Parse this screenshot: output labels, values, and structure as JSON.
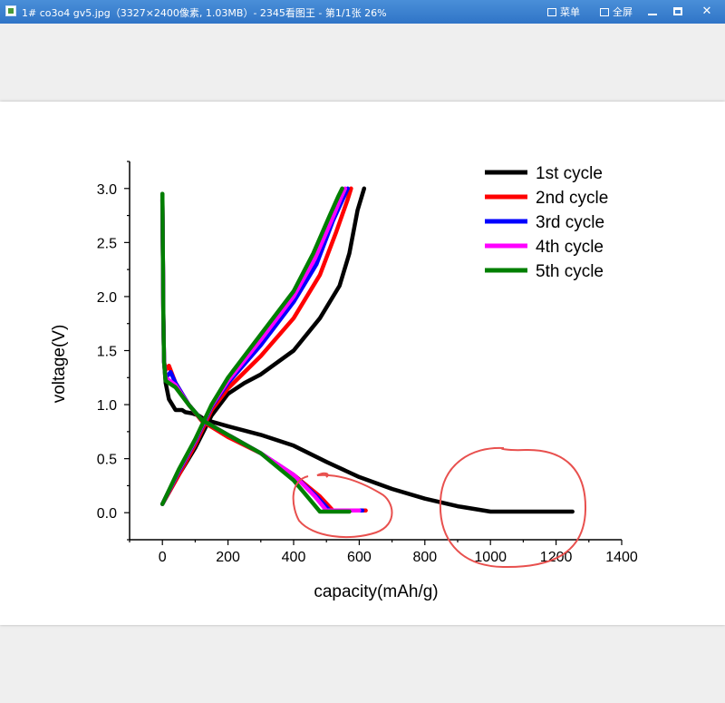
{
  "window": {
    "title": "1# co3o4 gv5.jpg（3327×2400像素, 1.03MB）- 2345看图王 - 第1/1张 26%",
    "menu_label": "菜单",
    "fullscreen_label": "全屏",
    "minimize_symbol": "—",
    "maximize_symbol": "□",
    "close_symbol": "✕"
  },
  "chart_data": {
    "type": "line",
    "xlabel": "capacity(mAh/g)",
    "ylabel": "voltage(V)",
    "xlim": [
      -100,
      1400
    ],
    "ylim": [
      -0.25,
      3.25
    ],
    "xticks": [
      "0",
      "200",
      "400",
      "600",
      "800",
      "1000",
      "1200",
      "1400"
    ],
    "yticks": [
      "0.0",
      "0.5",
      "1.0",
      "1.5",
      "2.0",
      "2.5",
      "3.0"
    ],
    "legend_position": "top-right",
    "series": [
      {
        "name": "1st cycle",
        "color": "#000000",
        "discharge": [
          [
            0,
            2.95
          ],
          [
            3,
            1.8
          ],
          [
            5,
            1.4
          ],
          [
            10,
            1.2
          ],
          [
            20,
            1.05
          ],
          [
            40,
            0.95
          ],
          [
            60,
            0.95
          ],
          [
            70,
            0.93
          ],
          [
            90,
            0.92
          ],
          [
            110,
            0.9
          ],
          [
            130,
            0.86
          ],
          [
            200,
            0.8
          ],
          [
            300,
            0.72
          ],
          [
            400,
            0.62
          ],
          [
            500,
            0.47
          ],
          [
            600,
            0.33
          ],
          [
            700,
            0.22
          ],
          [
            800,
            0.13
          ],
          [
            900,
            0.06
          ],
          [
            1000,
            0.01
          ],
          [
            1250,
            0.01
          ]
        ],
        "charge": [
          [
            0,
            0.08
          ],
          [
            50,
            0.35
          ],
          [
            100,
            0.6
          ],
          [
            150,
            0.9
          ],
          [
            200,
            1.1
          ],
          [
            250,
            1.2
          ],
          [
            300,
            1.28
          ],
          [
            400,
            1.5
          ],
          [
            480,
            1.8
          ],
          [
            540,
            2.1
          ],
          [
            570,
            2.4
          ],
          [
            595,
            2.8
          ],
          [
            615,
            3.0
          ]
        ]
      },
      {
        "name": "2nd cycle",
        "color": "#ff0000",
        "discharge": [
          [
            0,
            2.9
          ],
          [
            3,
            1.8
          ],
          [
            5,
            1.4
          ],
          [
            10,
            1.32
          ],
          [
            20,
            1.36
          ],
          [
            40,
            1.2
          ],
          [
            80,
            1.0
          ],
          [
            120,
            0.85
          ],
          [
            200,
            0.7
          ],
          [
            300,
            0.55
          ],
          [
            400,
            0.35
          ],
          [
            480,
            0.15
          ],
          [
            520,
            0.02
          ],
          [
            620,
            0.02
          ]
        ],
        "charge": [
          [
            0,
            0.08
          ],
          [
            50,
            0.35
          ],
          [
            100,
            0.63
          ],
          [
            150,
            0.95
          ],
          [
            200,
            1.15
          ],
          [
            300,
            1.45
          ],
          [
            400,
            1.8
          ],
          [
            480,
            2.2
          ],
          [
            530,
            2.6
          ],
          [
            565,
            2.9
          ],
          [
            575,
            3.0
          ]
        ]
      },
      {
        "name": "3rd cycle",
        "color": "#0000ff",
        "discharge": [
          [
            0,
            2.9
          ],
          [
            3,
            1.8
          ],
          [
            5,
            1.4
          ],
          [
            10,
            1.25
          ],
          [
            25,
            1.3
          ],
          [
            40,
            1.2
          ],
          [
            80,
            1.0
          ],
          [
            120,
            0.86
          ],
          [
            200,
            0.72
          ],
          [
            300,
            0.55
          ],
          [
            400,
            0.35
          ],
          [
            470,
            0.15
          ],
          [
            510,
            0.02
          ],
          [
            610,
            0.02
          ]
        ],
        "charge": [
          [
            0,
            0.08
          ],
          [
            50,
            0.38
          ],
          [
            100,
            0.66
          ],
          [
            150,
            0.98
          ],
          [
            200,
            1.2
          ],
          [
            300,
            1.55
          ],
          [
            400,
            1.95
          ],
          [
            470,
            2.3
          ],
          [
            520,
            2.7
          ],
          [
            550,
            2.9
          ],
          [
            565,
            3.0
          ]
        ]
      },
      {
        "name": "4th cycle",
        "color": "#ff00ff",
        "discharge": [
          [
            0,
            2.9
          ],
          [
            3,
            1.8
          ],
          [
            5,
            1.4
          ],
          [
            10,
            1.25
          ],
          [
            40,
            1.18
          ],
          [
            80,
            1.0
          ],
          [
            120,
            0.86
          ],
          [
            200,
            0.72
          ],
          [
            300,
            0.55
          ],
          [
            400,
            0.35
          ],
          [
            465,
            0.15
          ],
          [
            500,
            0.02
          ],
          [
            600,
            0.02
          ]
        ],
        "charge": [
          [
            0,
            0.08
          ],
          [
            50,
            0.39
          ],
          [
            100,
            0.67
          ],
          [
            150,
            0.99
          ],
          [
            200,
            1.22
          ],
          [
            300,
            1.6
          ],
          [
            400,
            2.0
          ],
          [
            465,
            2.35
          ],
          [
            515,
            2.7
          ],
          [
            545,
            2.92
          ],
          [
            557,
            3.0
          ]
        ]
      },
      {
        "name": "5th cycle",
        "color": "#007f00",
        "discharge": [
          [
            0,
            2.95
          ],
          [
            3,
            1.8
          ],
          [
            5,
            1.4
          ],
          [
            10,
            1.22
          ],
          [
            40,
            1.16
          ],
          [
            80,
            1.0
          ],
          [
            120,
            0.86
          ],
          [
            200,
            0.72
          ],
          [
            300,
            0.55
          ],
          [
            400,
            0.3
          ],
          [
            450,
            0.12
          ],
          [
            480,
            0.01
          ],
          [
            570,
            0.01
          ]
        ],
        "charge": [
          [
            0,
            0.08
          ],
          [
            50,
            0.4
          ],
          [
            100,
            0.68
          ],
          [
            150,
            1.0
          ],
          [
            200,
            1.25
          ],
          [
            300,
            1.65
          ],
          [
            400,
            2.05
          ],
          [
            460,
            2.4
          ],
          [
            510,
            2.75
          ],
          [
            535,
            2.92
          ],
          [
            548,
            3.0
          ]
        ]
      }
    ],
    "annotations": [
      "red-circle-around-1st-cycle-plateau",
      "red-circle-around-2nd-5th-cycle-plateau"
    ],
    "annotation_color": "#e8504e"
  }
}
